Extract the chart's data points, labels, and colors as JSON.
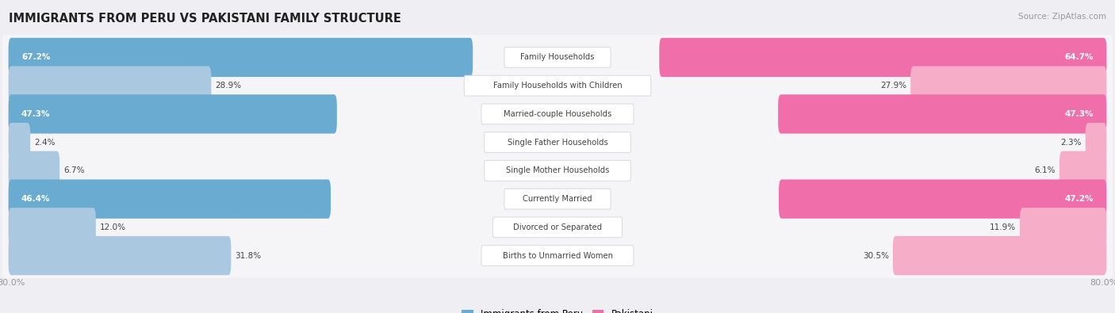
{
  "title": "IMMIGRANTS FROM PERU VS PAKISTANI FAMILY STRUCTURE",
  "source": "Source: ZipAtlas.com",
  "categories": [
    "Family Households",
    "Family Households with Children",
    "Married-couple Households",
    "Single Father Households",
    "Single Mother Households",
    "Currently Married",
    "Divorced or Separated",
    "Births to Unmarried Women"
  ],
  "peru_values": [
    67.2,
    28.9,
    47.3,
    2.4,
    6.7,
    46.4,
    12.0,
    31.8
  ],
  "pakistani_values": [
    64.7,
    27.9,
    47.3,
    2.3,
    6.1,
    47.2,
    11.9,
    30.5
  ],
  "peru_color_strong": "#6aabd2",
  "peru_color_light": "#aac9e0",
  "pakistani_color_strong": "#f06fab",
  "pakistani_color_light": "#f5adc8",
  "max_value": 80.0,
  "background_color": "#eeeef3",
  "row_bg_color": "#f5f5f8",
  "row_bg_alt": "#ebebf0",
  "label_bg_color": "#ffffff",
  "label_text_color": "#444444",
  "value_text_color_dark": "#444444",
  "value_text_color_light": "#ffffff",
  "axis_label_color": "#999999",
  "title_color": "#222222",
  "source_color": "#999999",
  "legend_peru_label": "Immigrants from Peru",
  "legend_pakistani_label": "Pakistani",
  "strong_rows": [
    0,
    2,
    5
  ],
  "bar_height": 0.58
}
